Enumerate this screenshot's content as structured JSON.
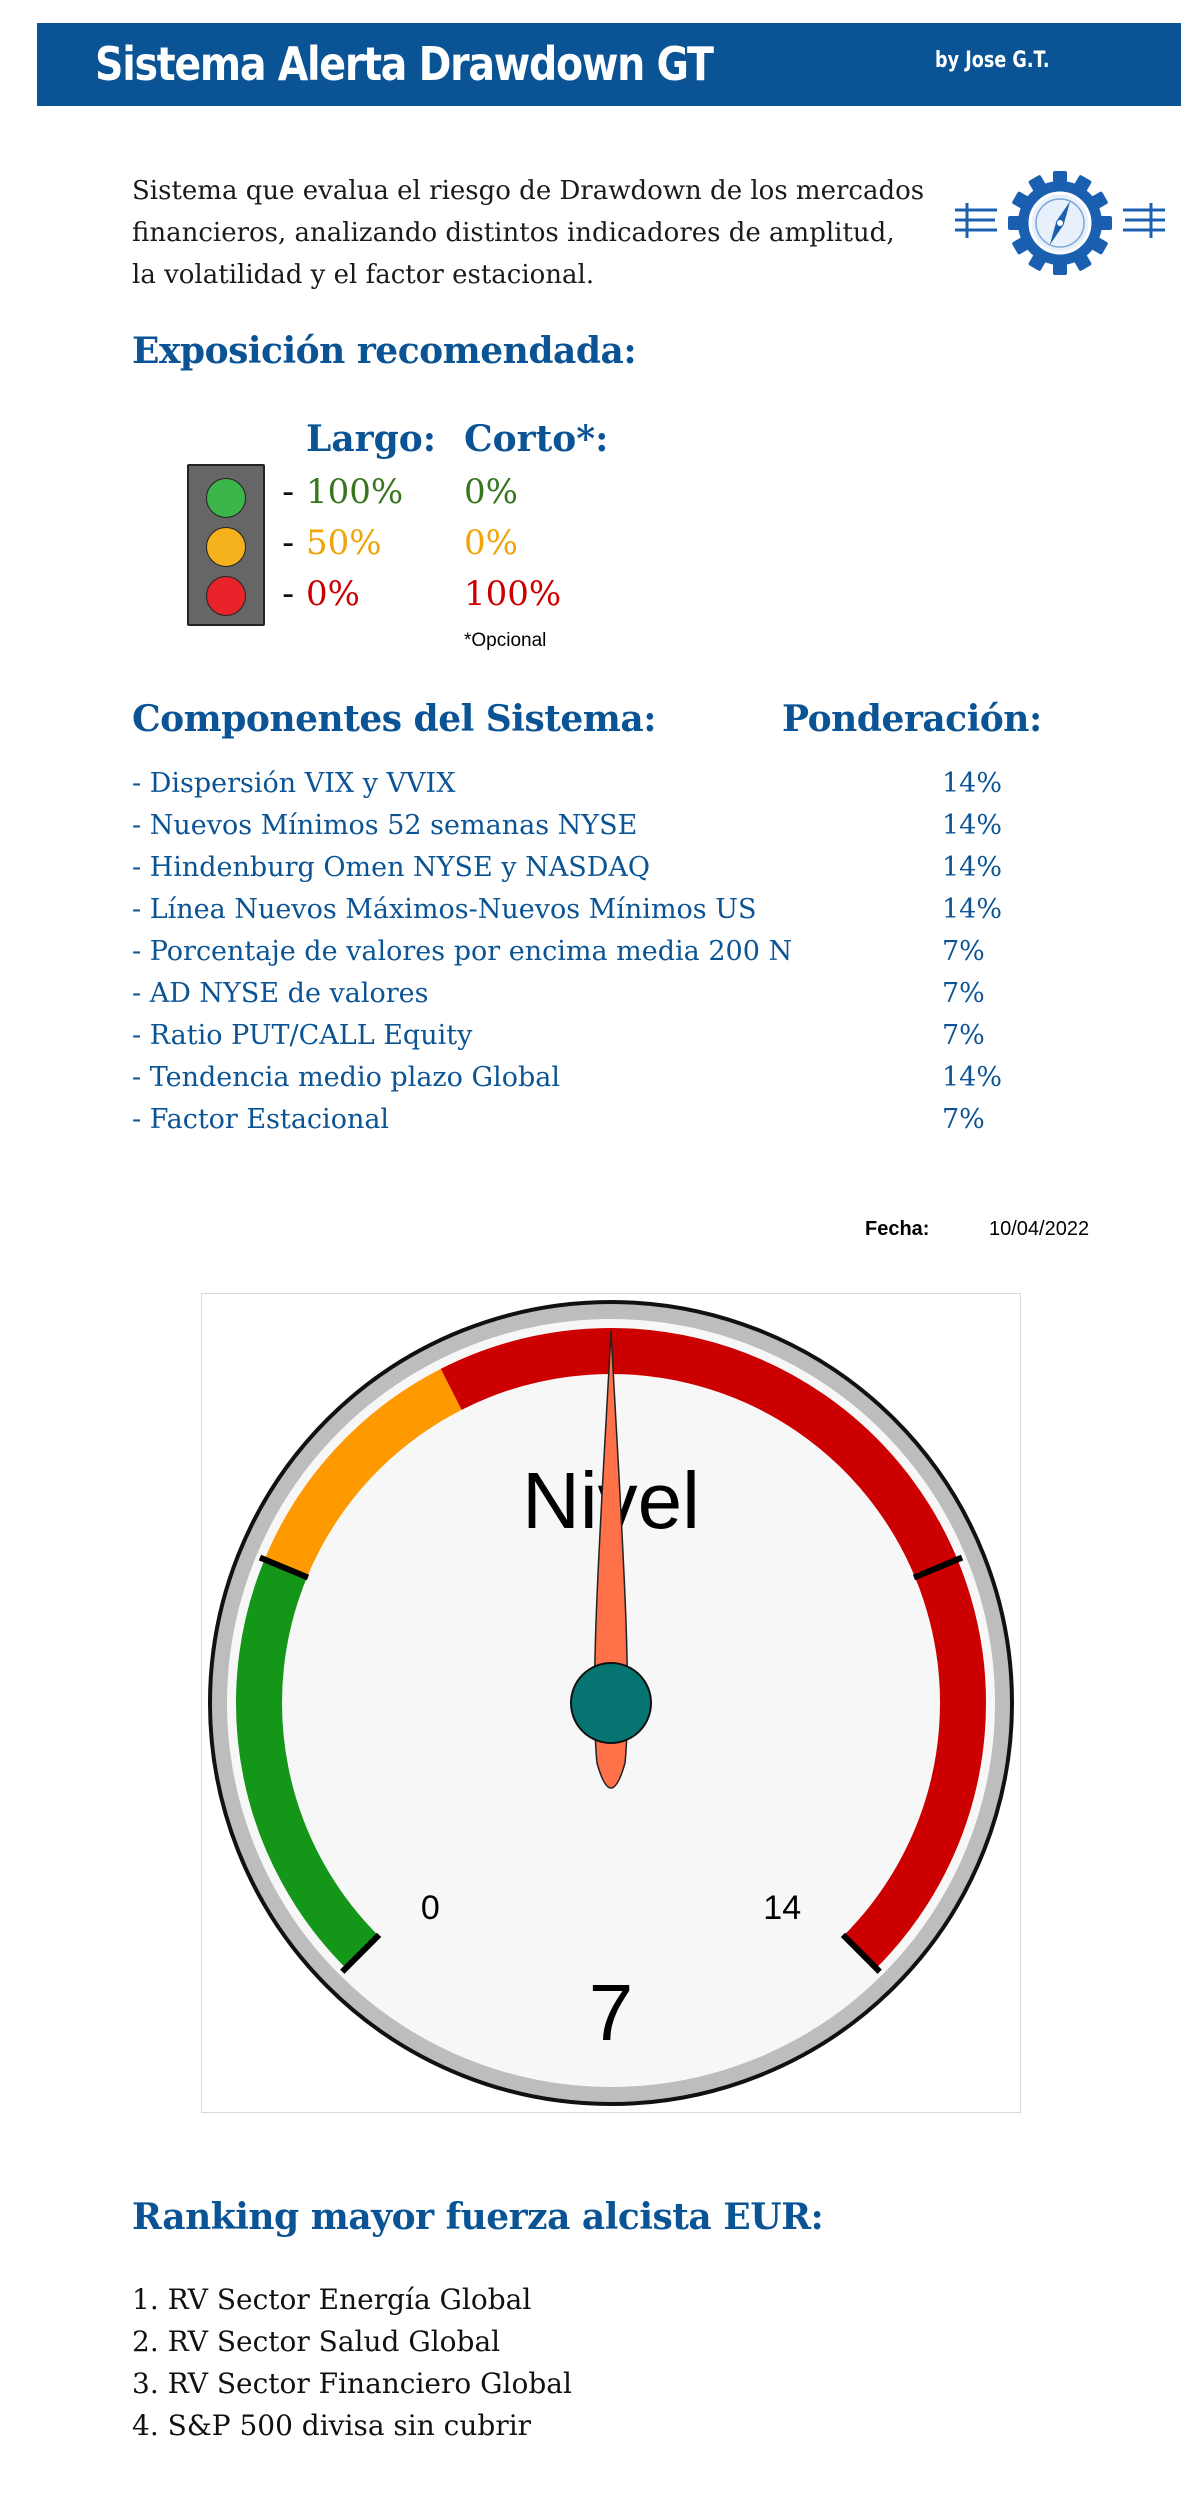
{
  "header": {
    "title": "Sistema Alerta Drawdown GT",
    "byline": "by Jose G.T."
  },
  "intro": {
    "lines": [
      "Sistema que evalua el riesgo de Drawdown de los mercados",
      "financieros, analizando distintos indicadores de amplitud,",
      "la volatilidad y el factor estacional."
    ]
  },
  "exposure": {
    "heading": "Exposición recomendada:",
    "long_header": "Largo:",
    "short_header": "Corto*:",
    "rows": [
      {
        "dash": "-",
        "long": "100%",
        "short": "0%",
        "color": "#38761d"
      },
      {
        "dash": "-",
        "long": "50%",
        "short": "0%",
        "color": "#f1a40a"
      },
      {
        "dash": "-",
        "long": "0%",
        "short": "100%",
        "color": "#cc0000"
      }
    ],
    "note": "*Opcional",
    "light_colors": [
      "#3cb54a",
      "#f5b21c",
      "#e8232a"
    ]
  },
  "components": {
    "heading": "Componentes del Sistema:",
    "weight_heading": "Ponderación:",
    "items": [
      {
        "name": "- Dispersión VIX y VVIX",
        "weight": "14%"
      },
      {
        "name": "- Nuevos Mínimos 52 semanas NYSE",
        "weight": "14%"
      },
      {
        "name": "- Hindenburg Omen NYSE y NASDAQ",
        "weight": "14%"
      },
      {
        "name": "- Línea Nuevos Máximos-Nuevos Mínimos US",
        "weight": "14%"
      },
      {
        "name": "- Porcentaje de valores por encima media 200 N",
        "weight": "7%"
      },
      {
        "name": "- AD NYSE de valores",
        "weight": "7%"
      },
      {
        "name": "- Ratio PUT/CALL Equity",
        "weight": "7%"
      },
      {
        "name": "- Tendencia medio plazo Global",
        "weight": "14%"
      },
      {
        "name": "- Factor Estacional",
        "weight": "7%"
      }
    ]
  },
  "date": {
    "label": "Fecha:",
    "value": "10/04/2022"
  },
  "gauge": {
    "title": "Nivel",
    "value": 7,
    "value_text": "7",
    "min": 0,
    "max": 14,
    "min_label": "0",
    "max_label": "14",
    "bands": [
      {
        "from": 0,
        "to": 3.5,
        "color": "#149619"
      },
      {
        "from": 3.5,
        "to": 5.6,
        "color": "#ff9900"
      },
      {
        "from": 5.6,
        "to": 14,
        "color": "#cc0000"
      }
    ],
    "major_ticks": [
      0,
      3.5,
      10.5,
      14
    ],
    "needle_color": "#ff7148",
    "hub_color": "#067572"
  },
  "ranking": {
    "heading": "Ranking mayor fuerza alcista EUR:",
    "items": [
      "1. RV Sector Energía Global",
      "2. RV Sector Salud Global",
      "3. RV Sector Financiero Global",
      "4. S&P 500 divisa sin cubrir"
    ]
  },
  "colors": {
    "brand": "#0a5394",
    "green": "#38761d",
    "orange": "#f1a40a",
    "red": "#cc0000"
  }
}
